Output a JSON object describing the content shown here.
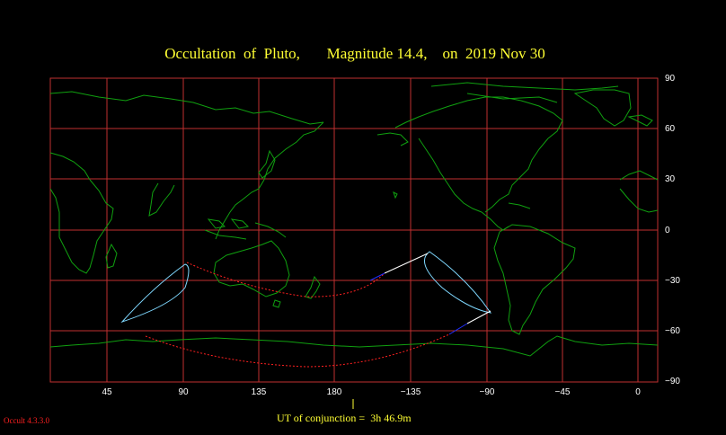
{
  "title": "Occultation  of  Pluto,       Magnitude 14.4,    on  2019 Nov 30",
  "lat_labels": [
    "90",
    "60",
    "30",
    "0",
    "−30",
    "−60",
    "−90"
  ],
  "lon_labels": [
    "45",
    "90",
    "135",
    "180",
    "−135",
    "−90",
    "−45",
    "0"
  ],
  "conjunction_text": "UT of conjunction =  3h 46.9m",
  "version": "Occult 4.3.3.0",
  "colors": {
    "background": "#000000",
    "grid": "#c03030",
    "coast": "#10a010",
    "path_limit": "#7fd8ff",
    "center_line": "#ff2020",
    "rise_set": "#ffffff",
    "title": "#ffff33"
  }
}
